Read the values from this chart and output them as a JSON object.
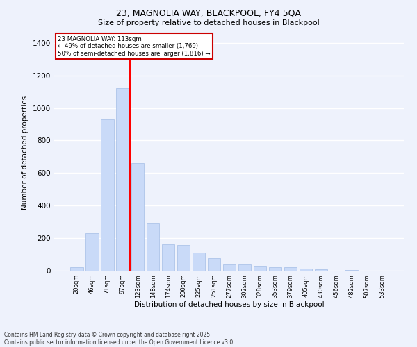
{
  "title1": "23, MAGNOLIA WAY, BLACKPOOL, FY4 5QA",
  "title2": "Size of property relative to detached houses in Blackpool",
  "xlabel": "Distribution of detached houses by size in Blackpool",
  "ylabel": "Number of detached properties",
  "categories": [
    "20sqm",
    "46sqm",
    "71sqm",
    "97sqm",
    "123sqm",
    "148sqm",
    "174sqm",
    "200sqm",
    "225sqm",
    "251sqm",
    "277sqm",
    "302sqm",
    "328sqm",
    "353sqm",
    "379sqm",
    "405sqm",
    "430sqm",
    "456sqm",
    "482sqm",
    "507sqm",
    "533sqm"
  ],
  "values": [
    20,
    230,
    930,
    1120,
    660,
    290,
    160,
    158,
    110,
    75,
    40,
    38,
    25,
    20,
    20,
    12,
    8,
    1,
    5,
    0,
    0
  ],
  "bar_color": "#c9daf8",
  "bar_edge_color": "#a4bde6",
  "red_line_x": 3.5,
  "red_line_label": "23 MAGNOLIA WAY: 113sqm",
  "annotation_line1": "← 49% of detached houses are smaller (1,769)",
  "annotation_line2": "50% of semi-detached houses are larger (1,816) →",
  "annotation_box_color": "#ffffff",
  "annotation_box_edge": "#cc0000",
  "ylim": [
    0,
    1450
  ],
  "yticks": [
    0,
    200,
    400,
    600,
    800,
    1000,
    1200,
    1400
  ],
  "bg_color": "#eef2fc",
  "grid_color": "#ffffff",
  "footer1": "Contains HM Land Registry data © Crown copyright and database right 2025.",
  "footer2": "Contains public sector information licensed under the Open Government Licence v3.0."
}
